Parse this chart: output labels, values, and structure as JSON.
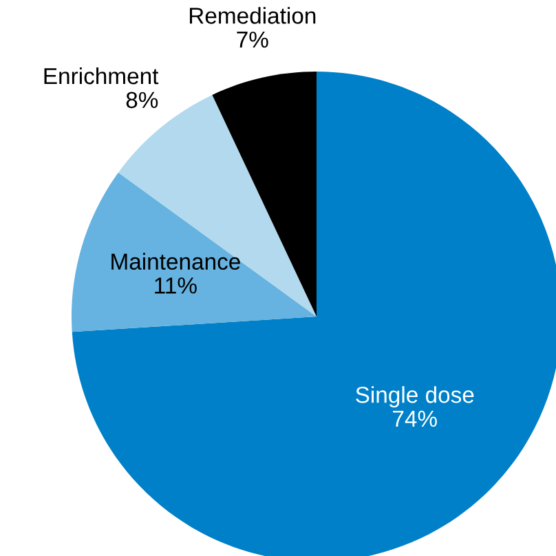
{
  "chart_data": {
    "type": "pie",
    "categories": [
      "Single dose",
      "Maintenance",
      "Enrichment",
      "Remediation"
    ],
    "values": [
      74,
      11,
      8,
      7
    ],
    "value_labels": [
      "74%",
      "11%",
      "8%",
      "7%"
    ],
    "colors": [
      "#0080c8",
      "#66b2e0",
      "#b3d9ee",
      "#000000"
    ]
  }
}
